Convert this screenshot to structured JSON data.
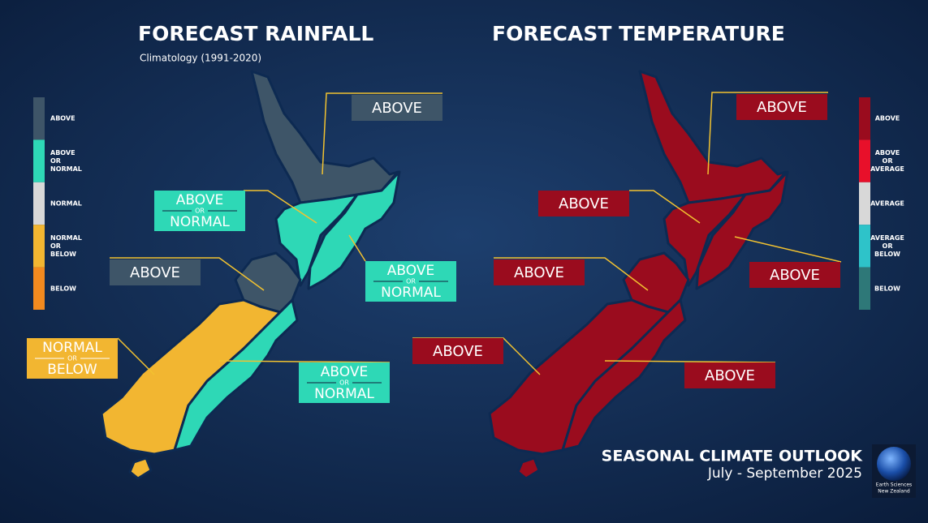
{
  "rainfall": {
    "title": "FORECAST RAINFALL",
    "subtitle": "Climatology (1991-2020)",
    "legend": [
      {
        "label": [
          "ABOVE"
        ],
        "color": "#3e5568"
      },
      {
        "label": [
          "ABOVE",
          "OR",
          "NORMAL"
        ],
        "color": "#2ed8b6"
      },
      {
        "label": [
          "NORMAL"
        ],
        "color": "#d8d8d8"
      },
      {
        "label": [
          "NORMAL",
          "OR",
          "BELOW"
        ],
        "color": "#f2b631"
      },
      {
        "label": [
          "BELOW"
        ],
        "color": "#f28a1f"
      }
    ],
    "regions": [
      {
        "label": [
          "ABOVE"
        ],
        "color": "#3e5568"
      },
      {
        "label": [
          "ABOVE",
          "OR",
          "NORMAL"
        ],
        "color": "#2ed8b6"
      },
      {
        "label": [
          "ABOVE",
          "OR",
          "NORMAL"
        ],
        "color": "#2ed8b6"
      },
      {
        "label": [
          "ABOVE"
        ],
        "color": "#3e5568"
      },
      {
        "label": [
          "NORMAL",
          "OR",
          "BELOW"
        ],
        "color": "#f2b631"
      },
      {
        "label": [
          "ABOVE",
          "OR",
          "NORMAL"
        ],
        "color": "#2ed8b6"
      }
    ]
  },
  "temperature": {
    "title": "FORECAST TEMPERATURE",
    "legend": [
      {
        "label": [
          "ABOVE"
        ],
        "color": "#9a0c1e"
      },
      {
        "label": [
          "ABOVE",
          "OR",
          "AVERAGE"
        ],
        "color": "#e8102a"
      },
      {
        "label": [
          "AVERAGE"
        ],
        "color": "#d8d8d8"
      },
      {
        "label": [
          "AVERAGE",
          "OR",
          "BELOW"
        ],
        "color": "#2ec3c9"
      },
      {
        "label": [
          "BELOW"
        ],
        "color": "#2e7878"
      }
    ],
    "regions": [
      {
        "label": [
          "ABOVE"
        ],
        "color": "#9a0c1e"
      },
      {
        "label": [
          "ABOVE"
        ],
        "color": "#9a0c1e"
      },
      {
        "label": [
          "ABOVE"
        ],
        "color": "#9a0c1e"
      },
      {
        "label": [
          "ABOVE"
        ],
        "color": "#9a0c1e"
      },
      {
        "label": [
          "ABOVE"
        ],
        "color": "#9a0c1e"
      },
      {
        "label": [
          "ABOVE"
        ],
        "color": "#9a0c1e"
      }
    ]
  },
  "footer": {
    "title": "SEASONAL CLIMATE OUTLOOK",
    "period": "July - September 2025",
    "logo": [
      "Earth Sciences",
      "New Zealand"
    ]
  }
}
